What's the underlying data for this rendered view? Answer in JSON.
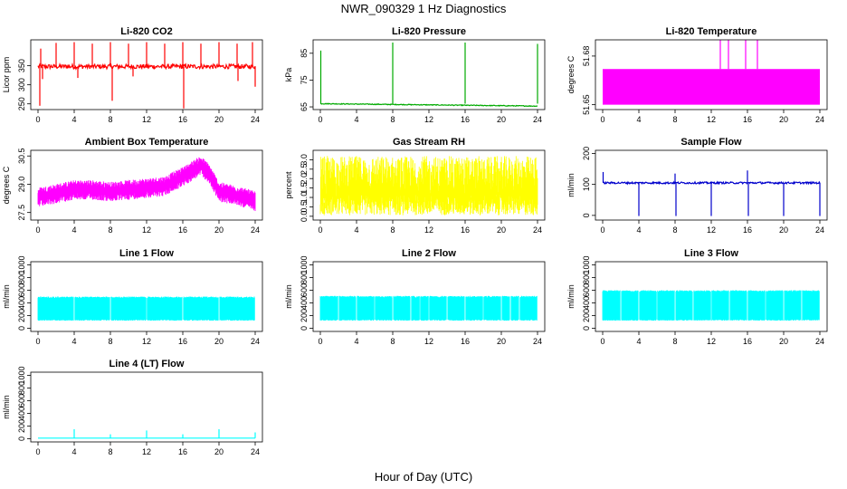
{
  "figure": {
    "title": "NWR_090329  1 Hz Diagnostics",
    "xlabel": "Hour of Day (UTC)"
  },
  "chart_data": [
    {
      "type": "line",
      "title": "Li-820 CO2",
      "ylabel": "Licor ppm",
      "color": "#ff0000",
      "xlim": [
        0,
        24
      ],
      "ylim": [
        235,
        418
      ],
      "yticks": [
        250,
        300,
        350
      ],
      "xticks": [
        0,
        4,
        8,
        12,
        16,
        20,
        24
      ],
      "series": [
        {
          "baseline": 348,
          "noise": 6,
          "spikes_up": [
            [
              0.3,
              395
            ],
            [
              2.0,
              410
            ],
            [
              4.0,
              412
            ],
            [
              6.0,
              408
            ],
            [
              8.0,
              412
            ],
            [
              10.0,
              408
            ],
            [
              12.0,
              412
            ],
            [
              14.0,
              408
            ],
            [
              16.0,
              412
            ],
            [
              18.0,
              408
            ],
            [
              20.0,
              412
            ],
            [
              22.0,
              408
            ],
            [
              23.7,
              412
            ]
          ],
          "spikes_down": [
            [
              0.2,
              245
            ],
            [
              8.2,
              258
            ],
            [
              16.1,
              238
            ],
            [
              22.1,
              310
            ],
            [
              24.0,
              295
            ],
            [
              0.5,
              315
            ],
            [
              4.4,
              318
            ],
            [
              10.5,
              322
            ]
          ]
        }
      ]
    },
    {
      "type": "line",
      "title": "Li-820 Pressure",
      "ylabel": "kPa",
      "color": "#00aa00",
      "xlim": [
        0,
        24
      ],
      "ylim": [
        64,
        90
      ],
      "yticks": [
        65,
        75,
        85
      ],
      "xticks": [
        0,
        4,
        8,
        12,
        16,
        20,
        24
      ],
      "series": [
        {
          "baseline_start": 66.2,
          "baseline_end": 65.3,
          "noise": 0.15,
          "spikes_up": [
            [
              0.05,
              86
            ],
            [
              8.0,
              89
            ],
            [
              16.0,
              89
            ],
            [
              24.0,
              88.5
            ]
          ]
        }
      ]
    },
    {
      "type": "area",
      "title": "Li-820 Temperature",
      "ylabel": "degrees C",
      "color": "#ff00ff",
      "xlim": [
        0,
        24
      ],
      "ylim": [
        51.647,
        51.69
      ],
      "yticks": [
        51.65,
        51.68
      ],
      "xticks": [
        0,
        4,
        8,
        12,
        16,
        20,
        24
      ],
      "series": [
        {
          "band": [
            51.65,
            51.672
          ],
          "spikes_up": [
            [
              13.0,
              51.69
            ],
            [
              13.9,
              51.69
            ],
            [
              15.8,
              51.69
            ],
            [
              17.1,
              51.69
            ]
          ]
        }
      ]
    },
    {
      "type": "line",
      "title": "Ambient Box Temperature",
      "ylabel": "degrees C",
      "color": "#ff00ff",
      "xlim": [
        0,
        24
      ],
      "ylim": [
        27.1,
        30.8
      ],
      "yticks": [
        27.5,
        29.0,
        30.5
      ],
      "xticks": [
        0,
        4,
        8,
        12,
        16,
        20,
        24
      ],
      "series": [
        {
          "mean": [
            [
              0,
              28.3
            ],
            [
              2,
              28.5
            ],
            [
              4,
              28.7
            ],
            [
              6,
              28.7
            ],
            [
              8,
              28.6
            ],
            [
              10,
              28.7
            ],
            [
              12,
              28.8
            ],
            [
              14,
              28.9
            ],
            [
              16,
              29.4
            ],
            [
              17,
              29.7
            ],
            [
              18,
              30.0
            ],
            [
              19,
              29.5
            ],
            [
              20,
              28.6
            ],
            [
              22,
              28.4
            ],
            [
              24,
              28.1
            ]
          ],
          "spread": 0.35
        }
      ]
    },
    {
      "type": "area",
      "title": "Gas Stream RH",
      "ylabel": "percent",
      "color": "#ffff00",
      "xlim": [
        0,
        24
      ],
      "ylim": [
        -0.2,
        3.5
      ],
      "yticks": [
        0.0,
        0.5,
        1.0,
        1.5,
        2.0,
        2.5,
        3.0
      ],
      "xticks": [
        0,
        4,
        8,
        12,
        16,
        20,
        24
      ],
      "series": [
        {
          "low": 0.05,
          "high": 3.2
        }
      ]
    },
    {
      "type": "line",
      "title": "Sample Flow",
      "ylabel": "ml/min",
      "color": "#0000cc",
      "xlim": [
        0,
        24
      ],
      "ylim": [
        -15,
        210
      ],
      "yticks": [
        0,
        100,
        200
      ],
      "xticks": [
        0,
        4,
        8,
        12,
        16,
        20,
        24
      ],
      "series": [
        {
          "baseline": 105,
          "noise": 3,
          "spikes_up": [
            [
              0.05,
              140
            ],
            [
              8.0,
              135
            ],
            [
              16.0,
              145
            ]
          ],
          "spikes_down": [
            [
              4.0,
              -2
            ],
            [
              8.1,
              -2
            ],
            [
              12.0,
              -2
            ],
            [
              16.1,
              -2
            ],
            [
              20.0,
              -2
            ],
            [
              24.0,
              -2
            ]
          ]
        }
      ]
    },
    {
      "type": "area",
      "title": "Line 1 Flow",
      "ylabel": "ml/min",
      "color": "#00ffff",
      "xlim": [
        0,
        24
      ],
      "ylim": [
        -50,
        1050
      ],
      "yticks": [
        0,
        200,
        400,
        600,
        800,
        1000
      ],
      "xticks": [
        0,
        4,
        8,
        12,
        16,
        20,
        24
      ],
      "series": [
        {
          "band": [
            120,
            500
          ],
          "gaps": [
            4.0,
            8.0,
            12.0,
            16.0,
            20.0,
            24.0
          ]
        }
      ]
    },
    {
      "type": "area",
      "title": "Line 2 Flow",
      "ylabel": "ml/min",
      "color": "#00ffff",
      "xlim": [
        0,
        24
      ],
      "ylim": [
        -50,
        1050
      ],
      "yticks": [
        0,
        200,
        400,
        600,
        800,
        1000
      ],
      "xticks": [
        0,
        4,
        8,
        12,
        16,
        20,
        24
      ],
      "series": [
        {
          "band": [
            120,
            510
          ],
          "gaps": [
            2.0,
            4.0,
            6.0,
            8.0,
            10.0,
            11.0,
            12.0,
            14.0,
            16.0,
            18.0,
            20.0,
            21.0,
            22.0,
            24.0
          ]
        }
      ]
    },
    {
      "type": "area",
      "title": "Line 3 Flow",
      "ylabel": "ml/min",
      "color": "#00ffff",
      "xlim": [
        0,
        24
      ],
      "ylim": [
        -50,
        1050
      ],
      "yticks": [
        0,
        200,
        400,
        600,
        800,
        1000
      ],
      "xticks": [
        0,
        4,
        8,
        12,
        16,
        20,
        24
      ],
      "series": [
        {
          "band": [
            120,
            600
          ],
          "gaps": [
            2.0,
            4.0,
            6.0,
            8.0,
            10.0,
            12.0,
            14.0,
            16.0,
            18.0,
            20.0,
            22.0,
            24.0
          ]
        }
      ]
    },
    {
      "type": "line",
      "title": "Line 4 (LT) Flow",
      "ylabel": "ml/min",
      "color": "#00ffff",
      "xlim": [
        0,
        24
      ],
      "ylim": [
        -50,
        1050
      ],
      "yticks": [
        0,
        200,
        400,
        600,
        800,
        1000
      ],
      "xticks": [
        0,
        4,
        8,
        12,
        16,
        20,
        24
      ],
      "series": [
        {
          "baseline": 10,
          "spikes_up": [
            [
              4.0,
              150
            ],
            [
              8.0,
              70
            ],
            [
              12.0,
              130
            ],
            [
              16.0,
              70
            ],
            [
              20.0,
              150
            ],
            [
              24.0,
              100
            ]
          ]
        }
      ]
    }
  ]
}
